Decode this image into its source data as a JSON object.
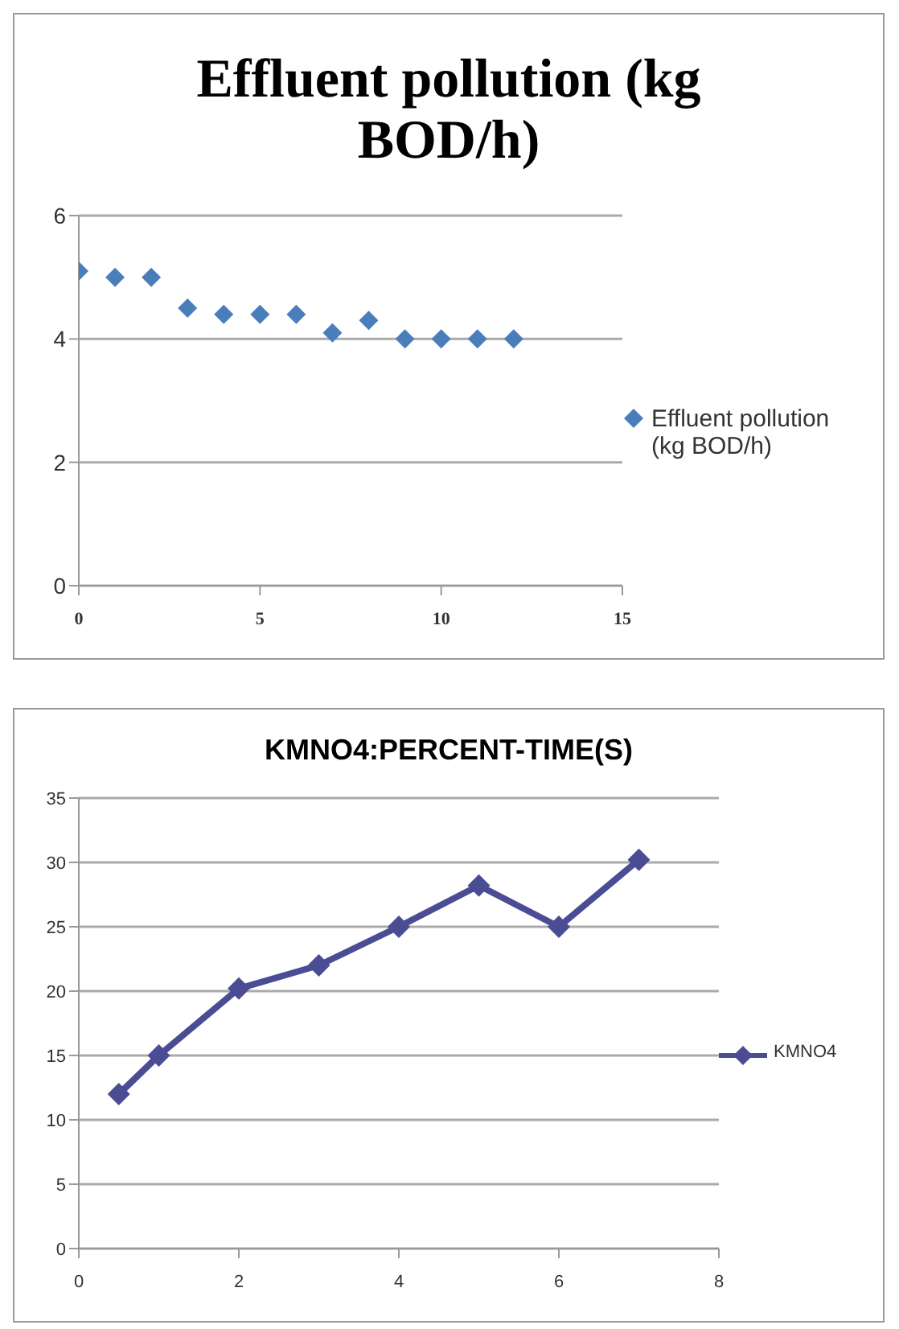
{
  "chart_data": [
    {
      "type": "scatter",
      "title": "Effluent pollution (kg BOD/h)",
      "x": [
        0,
        1,
        2,
        3,
        4,
        5,
        6,
        7,
        8,
        9,
        10,
        11,
        12
      ],
      "series": [
        {
          "name": "Effluent pollution    (kg BOD/h)",
          "color": "#4a7ebb",
          "values": [
            5.1,
            5.0,
            5.0,
            4.5,
            4.4,
            4.4,
            4.4,
            4.1,
            4.3,
            4.0,
            4.0,
            4.0,
            4.0
          ]
        }
      ],
      "xlim": [
        0,
        15
      ],
      "xticks": [
        0,
        5,
        10,
        15
      ],
      "ylim": [
        0,
        6
      ],
      "yticks": [
        0,
        2,
        4,
        6
      ],
      "grid": "y",
      "legend": "right",
      "marker": "diamond"
    },
    {
      "type": "line",
      "title": "KMNO4:PERCENT-TIME(S)",
      "x": [
        0.5,
        1,
        2,
        3,
        4,
        5,
        6,
        7
      ],
      "series": [
        {
          "name": "KMNO4",
          "color": "#4b4d94",
          "values": [
            12,
            15,
            20.2,
            22,
            25,
            28.2,
            25,
            30.2
          ]
        }
      ],
      "xlim": [
        0,
        8
      ],
      "xticks": [
        0,
        2,
        4,
        6,
        8
      ],
      "ylim": [
        0,
        35
      ],
      "yticks": [
        0,
        5,
        10,
        15,
        20,
        25,
        30,
        35
      ],
      "grid": "y",
      "legend": "right",
      "marker": "diamond",
      "line_style": "solid"
    }
  ]
}
